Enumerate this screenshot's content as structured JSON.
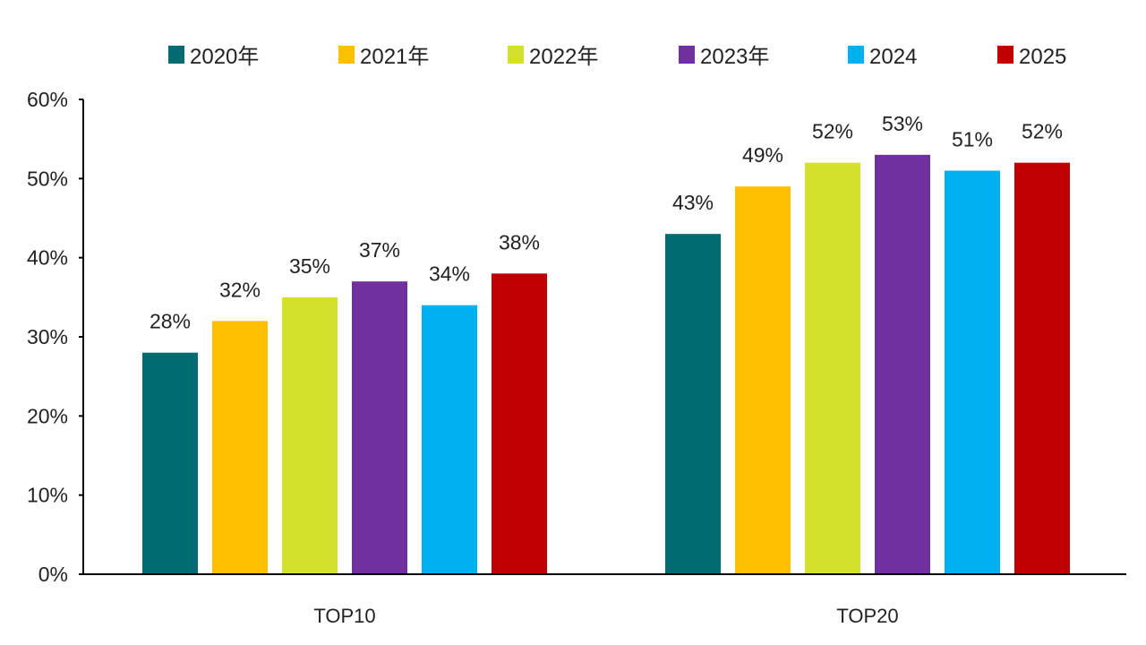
{
  "chart_data": {
    "type": "bar",
    "categories": [
      "TOP10",
      "TOP20"
    ],
    "series": [
      {
        "name": "2020年",
        "color": "#006b70",
        "values": [
          28,
          43
        ],
        "labels": [
          "28%",
          "43%"
        ]
      },
      {
        "name": "2021年",
        "color": "#ffc000",
        "values": [
          32,
          49
        ],
        "labels": [
          "32%",
          "49%"
        ]
      },
      {
        "name": "2022年",
        "color": "#d4e12b",
        "values": [
          35,
          52
        ],
        "labels": [
          "35%",
          "52%"
        ]
      },
      {
        "name": "2023年",
        "color": "#7030a0",
        "values": [
          37,
          53
        ],
        "labels": [
          "37%",
          "53%"
        ]
      },
      {
        "name": "2024",
        "color": "#00b0f0",
        "values": [
          34,
          51
        ],
        "labels": [
          "34%",
          "51%"
        ]
      },
      {
        "name": "2025",
        "color": "#c00000",
        "values": [
          38,
          52
        ],
        "labels": [
          "38%",
          "52%"
        ]
      }
    ],
    "ylim": [
      0,
      60
    ],
    "yticks": [
      0,
      10,
      20,
      30,
      40,
      50,
      60
    ],
    "ytick_labels": [
      "0%",
      "10%",
      "20%",
      "30%",
      "40%",
      "50%",
      "60%"
    ],
    "title": "",
    "xlabel": "",
    "ylabel": "",
    "grid": false,
    "legend_position": "top"
  }
}
